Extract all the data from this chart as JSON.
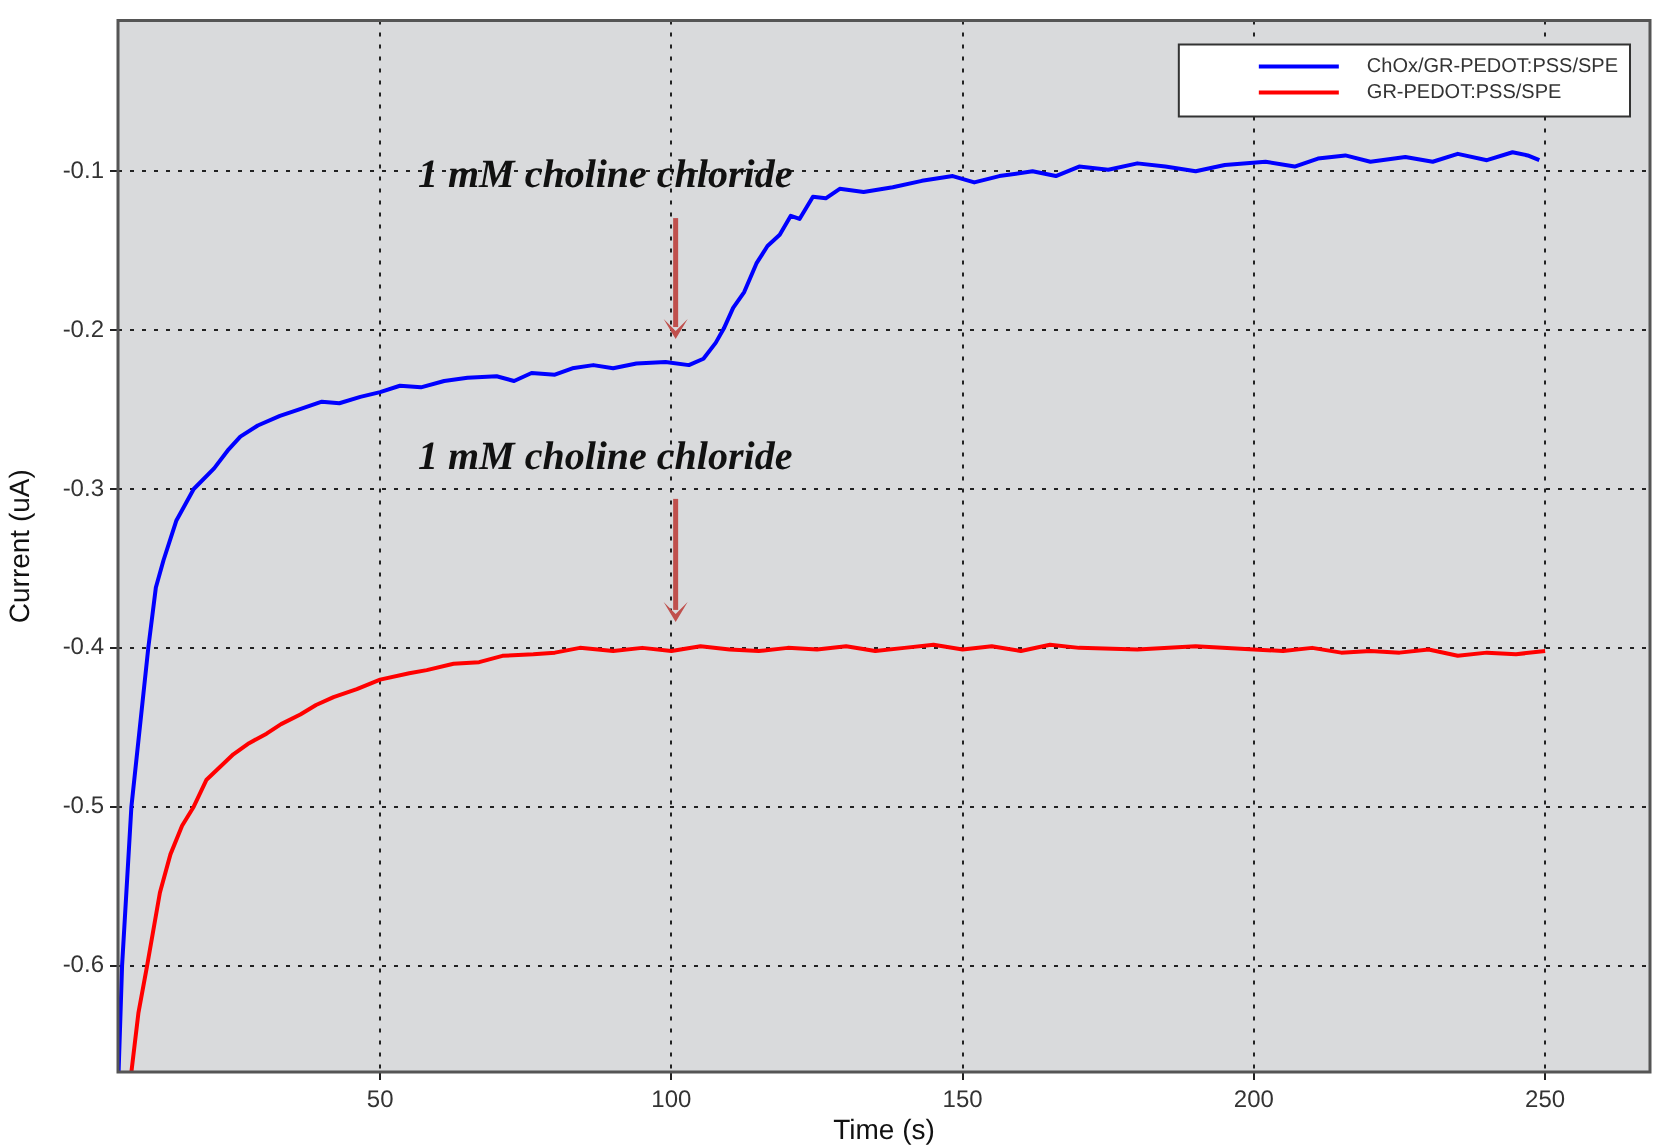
{
  "chart_data": {
    "type": "line",
    "xlabel": "Time (s)",
    "ylabel": "Current (uA)",
    "xlim": [
      5,
      268
    ],
    "xticks": [
      50,
      100,
      150,
      200,
      250
    ],
    "ylim": [
      -0.667,
      -0.005
    ],
    "yticks": [
      -0.6,
      -0.5,
      -0.4,
      -0.3,
      -0.2,
      -0.1
    ],
    "grid": true,
    "legend": "top right",
    "marker": "none",
    "line_style": "solid",
    "series": [
      {
        "name": "ChOx/GR-PEDOT:PSS/SPE",
        "color": "#0000ff",
        "x": [
          5.1,
          5.7,
          7.3,
          10.2,
          11.5,
          12.8,
          15,
          18,
          21.5,
          24,
          26,
          29,
          32.8,
          36,
          40,
          43,
          46.6,
          50,
          53.4,
          57,
          61,
          65,
          70,
          73,
          76,
          80,
          83,
          86.6,
          90,
          94,
          99,
          103,
          105.5,
          107.6,
          109,
          110.6,
          112.5,
          114.6,
          116.5,
          118.6,
          120.5,
          122,
          124.3,
          126.5,
          128.9,
          133,
          138,
          143,
          148.3,
          152,
          156.3,
          162,
          166,
          170,
          175,
          180,
          184.8,
          190,
          195,
          202,
          207,
          211,
          215.7,
          220,
          226,
          230.7,
          235,
          240,
          244.4,
          247,
          249
        ],
        "values": [
          -0.667,
          -0.6,
          -0.5,
          -0.4,
          -0.362,
          -0.345,
          -0.32,
          -0.3,
          -0.287,
          -0.275,
          -0.267,
          -0.26,
          -0.254,
          -0.25,
          -0.245,
          -0.246,
          -0.242,
          -0.239,
          -0.235,
          -0.236,
          -0.232,
          -0.23,
          -0.229,
          -0.232,
          -0.227,
          -0.228,
          -0.224,
          -0.222,
          -0.224,
          -0.221,
          -0.22,
          -0.222,
          -0.218,
          -0.208,
          -0.199,
          -0.186,
          -0.176,
          -0.158,
          -0.147,
          -0.14,
          -0.128,
          -0.13,
          -0.116,
          -0.117,
          -0.111,
          -0.113,
          -0.11,
          -0.106,
          -0.103,
          -0.107,
          -0.103,
          -0.1,
          -0.103,
          -0.097,
          -0.099,
          -0.095,
          -0.097,
          -0.1,
          -0.096,
          -0.094,
          -0.097,
          -0.092,
          -0.09,
          -0.094,
          -0.091,
          -0.094,
          -0.089,
          -0.093,
          -0.088,
          -0.09,
          -0.093
        ]
      },
      {
        "name": "GR-PEDOT:PSS/SPE",
        "color": "#ff0000",
        "x": [
          7.3,
          8.5,
          10,
          12.2,
          14,
          16,
          18,
          20.2,
          22.5,
          24.8,
          27.5,
          30.5,
          33,
          36.3,
          39,
          42,
          46,
          50,
          55,
          58,
          62.6,
          67,
          71,
          76.3,
          80,
          84.3,
          90,
          95,
          100,
          105,
          110,
          115,
          120,
          125,
          130,
          135,
          140,
          145,
          150,
          155,
          160,
          165,
          170,
          180,
          190,
          200,
          205,
          210,
          215,
          220,
          225,
          230,
          235,
          240,
          245,
          250
        ],
        "values": [
          -0.667,
          -0.63,
          -0.6,
          -0.554,
          -0.53,
          -0.512,
          -0.5,
          -0.483,
          -0.475,
          -0.467,
          -0.46,
          -0.454,
          -0.448,
          -0.442,
          -0.436,
          -0.431,
          -0.426,
          -0.42,
          -0.416,
          -0.414,
          -0.41,
          -0.409,
          -0.405,
          -0.404,
          -0.403,
          -0.4,
          -0.402,
          -0.4,
          -0.402,
          -0.399,
          -0.401,
          -0.402,
          -0.4,
          -0.401,
          -0.399,
          -0.402,
          -0.4,
          -0.398,
          -0.401,
          -0.399,
          -0.402,
          -0.398,
          -0.4,
          -0.401,
          -0.399,
          -0.401,
          -0.402,
          -0.4,
          -0.403,
          -0.402,
          -0.403,
          -0.401,
          -0.405,
          -0.403,
          -0.404,
          -0.402
        ]
      }
    ],
    "annotations": [
      "1 mM choline chloride",
      "1 mM choline chloride"
    ]
  }
}
